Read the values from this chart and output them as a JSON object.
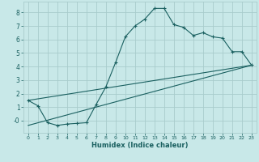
{
  "xlabel": "Humidex (Indice chaleur)",
  "x_values": [
    0,
    1,
    2,
    3,
    4,
    5,
    6,
    7,
    8,
    9,
    10,
    11,
    12,
    13,
    14,
    15,
    16,
    17,
    18,
    19,
    20,
    21,
    22,
    23
  ],
  "line_main_y": [
    1.5,
    1.1,
    -0.15,
    -0.35,
    -0.25,
    -0.2,
    -0.15,
    1.2,
    2.5,
    4.3,
    6.2,
    7.0,
    7.5,
    8.3,
    8.3,
    7.1,
    6.9,
    6.3,
    6.5,
    6.2,
    6.1,
    5.1,
    5.1,
    4.1
  ],
  "straight_line1_x": [
    0,
    23
  ],
  "straight_line1_y": [
    1.5,
    4.1
  ],
  "straight_line2_x": [
    0,
    23
  ],
  "straight_line2_y": [
    -0.35,
    4.1
  ],
  "bg_color": "#c8e8e8",
  "grid_color": "#a8cccc",
  "line_color": "#1a6060",
  "xlim": [
    -0.5,
    23.5
  ],
  "ylim": [
    -0.9,
    8.8
  ],
  "xticks": [
    0,
    1,
    2,
    3,
    4,
    5,
    6,
    7,
    8,
    9,
    10,
    11,
    12,
    13,
    14,
    15,
    16,
    17,
    18,
    19,
    20,
    21,
    22,
    23
  ],
  "yticks": [
    0,
    1,
    2,
    3,
    4,
    5,
    6,
    7,
    8
  ],
  "ytick_labels": [
    "-0",
    "1",
    "2",
    "3",
    "4",
    "5",
    "6",
    "7",
    "8"
  ]
}
